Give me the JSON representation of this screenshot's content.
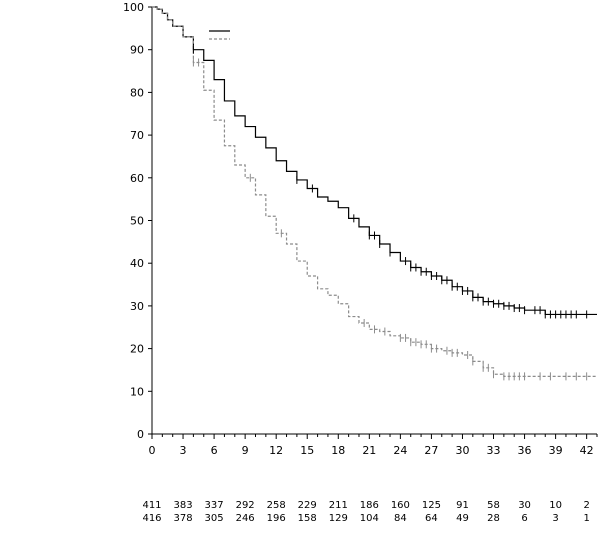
{
  "chart_data": {
    "type": "line",
    "title": "",
    "xlabel": "",
    "ylabel": "",
    "xlim": [
      0,
      43
    ],
    "ylim": [
      0,
      100
    ],
    "x_ticks": [
      0,
      3,
      6,
      9,
      12,
      15,
      18,
      21,
      24,
      27,
      30,
      33,
      36,
      39,
      42
    ],
    "y_ticks": [
      0,
      10,
      20,
      30,
      40,
      50,
      60,
      70,
      80,
      90,
      100
    ],
    "grid": false,
    "legend": {
      "placement": "top-left",
      "entries_text_visible": false
    },
    "series": [
      {
        "style": "solid",
        "color": "#000000",
        "x": [
          0,
          0.5,
          1,
          1.5,
          2,
          3,
          4,
          5,
          6,
          7,
          8,
          9,
          10,
          11,
          12,
          13,
          14,
          15,
          16,
          17,
          18,
          19,
          20,
          21,
          22,
          23,
          24,
          25,
          26,
          27,
          28,
          29,
          30,
          31,
          32,
          33,
          34,
          35,
          36,
          38,
          40,
          42,
          43
        ],
        "y": [
          100,
          99.5,
          98.5,
          97,
          95.5,
          93,
          90,
          87.5,
          83,
          78,
          74.5,
          72,
          69.5,
          67,
          64,
          61.5,
          59.5,
          57.5,
          55.5,
          54.5,
          53,
          50.5,
          48.5,
          46.5,
          44.5,
          42.5,
          40.5,
          39,
          38,
          37,
          36,
          34.5,
          33.5,
          32,
          31,
          30.5,
          30,
          29.5,
          29,
          28,
          28,
          28,
          28
        ]
      },
      {
        "style": "dashed",
        "color": "#8c8c8c",
        "x": [
          0,
          0.5,
          1,
          1.5,
          2,
          3,
          4,
          5,
          6,
          7,
          8,
          9,
          10,
          11,
          12,
          13,
          14,
          15,
          16,
          17,
          18,
          19,
          20,
          21,
          22,
          23,
          24,
          25,
          26,
          27,
          28,
          29,
          30,
          31,
          32,
          33,
          34,
          35,
          36,
          38,
          40,
          42,
          43
        ],
        "y": [
          100,
          99.5,
          98.5,
          97,
          95.5,
          93,
          87,
          80.5,
          73.5,
          67.5,
          63,
          60,
          56,
          51,
          47,
          44.5,
          40.5,
          37,
          34,
          32.5,
          30.5,
          27.5,
          26,
          24.5,
          24,
          23,
          22.5,
          21.5,
          21,
          20,
          19.5,
          19,
          18.5,
          17,
          15.5,
          14,
          13.5,
          13.5,
          13.5,
          13.5,
          13.5,
          13.5,
          13.5
        ]
      }
    ],
    "censor_marks": [
      {
        "series": 0,
        "x": [
          4,
          14,
          15.5,
          19.5,
          21,
          21.5,
          22,
          23,
          24.5,
          25,
          25.5,
          26,
          26.5,
          27,
          27.5,
          28,
          28.5,
          29,
          29.5,
          30,
          30.5,
          31,
          31.5,
          32,
          32.5,
          33,
          33.5,
          34,
          34.5,
          35,
          35.5,
          36,
          37,
          37.5,
          38,
          38.5,
          39,
          39.5,
          40,
          40.5,
          41,
          42
        ]
      },
      {
        "series": 1,
        "x": [
          4,
          4.5,
          9.5,
          12.5,
          20.5,
          21.5,
          22.5,
          24,
          24.5,
          25,
          25.5,
          26,
          26.5,
          27,
          27.5,
          28.5,
          29,
          29.5,
          30.5,
          31,
          32,
          32.5,
          33,
          34,
          34.5,
          35,
          35.5,
          36,
          37.5,
          38.5,
          40,
          41,
          42
        ]
      }
    ],
    "at_risk": {
      "rows": [
        [
          "411",
          "383",
          "337",
          "292",
          "258",
          "229",
          "211",
          "186",
          "160",
          "125",
          "91",
          "58",
          "30",
          "10",
          "2"
        ],
        [
          "416",
          "378",
          "305",
          "246",
          "196",
          "158",
          "129",
          "104",
          "84",
          "64",
          "49",
          "28",
          "6",
          "3",
          "1"
        ]
      ]
    }
  }
}
